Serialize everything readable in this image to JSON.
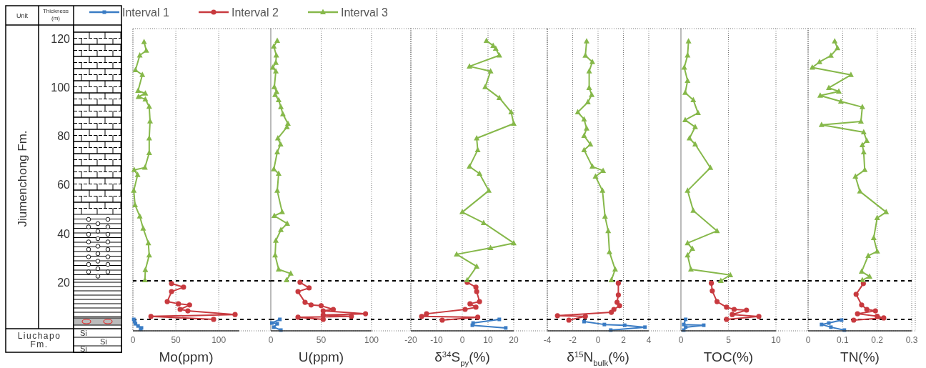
{
  "chart_data": [
    {
      "type": "line",
      "xlabel": "Mo(ppm)",
      "ylabel": "Thickness (m)",
      "xlim": [
        0,
        124
      ],
      "xticks": [
        0,
        50,
        100
      ],
      "ylim": [
        0,
        124
      ],
      "yticks": [
        20,
        40,
        60,
        80,
        100,
        120
      ],
      "grid": "x",
      "legend": "top",
      "annotations": [
        "Unit",
        "Jiumenchong Fm.",
        "Liuchapo Fm.",
        "Si",
        "Si",
        "Si"
      ],
      "ref_lines": [
        {
          "axis": "y",
          "value": 20.5,
          "color": "#000000",
          "line_style": "dashed"
        },
        {
          "axis": "y",
          "value": 4.7,
          "color": "#000000",
          "line_style": "dashed"
        }
      ],
      "series": [
        {
          "name": "Interval 1",
          "color": "#3a7cc4",
          "marker": "square",
          "x": [
            1,
            2,
            3,
            6,
            10,
            9
          ],
          "values": [
            4.7,
            3.8,
            2.9,
            2,
            1.2,
            0.6
          ]
        },
        {
          "name": "Interval 2",
          "color": "#c83a3f",
          "marker": "circle",
          "x": [
            45,
            59,
            45,
            40,
            53,
            66,
            55,
            64,
            119,
            21,
            94
          ],
          "values": [
            19.4,
            17.9,
            16.1,
            12,
            11.1,
            10.6,
            8.8,
            8.2,
            6.7,
            5.9,
            4.7
          ]
        },
        {
          "name": "Interval 3",
          "color": "#86b84a",
          "marker": "triangle",
          "x": [
            13,
            15.6,
            8,
            3,
            11,
            6,
            14.5,
            6.5,
            14.5,
            19,
            20,
            19,
            19,
            14,
            1.5,
            5.5,
            1,
            2.5,
            8,
            12,
            18,
            19,
            14.5,
            14
          ],
          "values": [
            118.5,
            115,
            113,
            107,
            105,
            98.5,
            97.4,
            96,
            95,
            92,
            86,
            79,
            73,
            67,
            66,
            64,
            57.5,
            51.6,
            47,
            42,
            36,
            31,
            25,
            20.8
          ]
        }
      ]
    },
    {
      "type": "line",
      "xlabel": "U(ppm)",
      "xlim": [
        0,
        100
      ],
      "xticks": [
        0,
        50,
        100
      ],
      "ylim": [
        0,
        124
      ],
      "tick_labels": "x",
      "grid": "x",
      "ref_lines": [
        {
          "axis": "y",
          "value": 20.5,
          "color": "#000000",
          "line_style": "dashed"
        },
        {
          "axis": "y",
          "value": 4.7,
          "color": "#000000",
          "line_style": "dashed"
        }
      ],
      "series": [
        {
          "color": "#3a7cc4",
          "marker": "square",
          "x": [
            9,
            1,
            6.4,
            3,
            10
          ],
          "values": [
            4.7,
            3.2,
            2.9,
            1.5,
            0.3
          ]
        },
        {
          "color": "#c83a3f",
          "marker": "circle",
          "x": [
            29,
            38,
            27,
            34,
            40,
            50,
            62,
            52,
            94,
            52,
            80,
            27,
            52
          ],
          "values": [
            19.9,
            17.6,
            16.1,
            11.7,
            10.6,
            10.3,
            8.8,
            8.2,
            7,
            6.5,
            5.9,
            5.6,
            4.7
          ]
        },
        {
          "color": "#86b84a",
          "marker": "triangle",
          "x": [
            6.4,
            3,
            5.5,
            5,
            2,
            5,
            3.5,
            5.8,
            4.3,
            7.8,
            10,
            12,
            17,
            16,
            7,
            9.7,
            6.4,
            3,
            7.8,
            6.4,
            11.3,
            3.5,
            16.3,
            10,
            5,
            4.3,
            7.8,
            19.8,
            15.6
          ],
          "values": [
            119,
            116.7,
            113,
            110,
            108,
            106.5,
            100,
            98,
            96.8,
            94.7,
            91.8,
            88.9,
            85,
            83.6,
            79,
            76.5,
            73.3,
            66.3,
            64.5,
            57.5,
            48.7,
            47.2,
            44,
            41.4,
            37,
            31,
            25.2,
            23.5,
            20.8
          ]
        }
      ]
    },
    {
      "type": "line",
      "xlabel": "δ$^{34}$S$_{py}$(%)",
      "xlim": [
        -20,
        20
      ],
      "xticks": [
        -20,
        -10,
        0,
        10,
        20
      ],
      "ylim": [
        0,
        124
      ],
      "tick_labels": "x",
      "grid": "x",
      "ref_lines": [
        {
          "axis": "y",
          "value": 20.5,
          "color": "#000000",
          "line_style": "dashed"
        },
        {
          "axis": "y",
          "value": 4.7,
          "color": "#000000",
          "line_style": "dashed"
        }
      ],
      "series": [
        {
          "color": "#3a7cc4",
          "marker": "square",
          "x": [
            14.4,
            4.2,
            3.9,
            16.9
          ],
          "values": [
            4.7,
            3.2,
            2.3,
            1.2
          ]
        },
        {
          "color": "#c83a3f",
          "marker": "circle",
          "x": [
            1.9,
            5.3,
            5.6,
            6.7,
            3,
            5.3,
            1.1,
            -13.9,
            -15.8,
            6,
            -7.8
          ],
          "values": [
            19.9,
            17.9,
            16.1,
            12,
            11.1,
            9.7,
            8.8,
            7,
            5.9,
            5.6,
            4.4
          ]
        },
        {
          "color": "#86b84a",
          "marker": "triangle",
          "x": [
            9.4,
            12,
            13,
            14.4,
            2.8,
            11,
            8.9,
            14.4,
            19,
            20,
            5.6,
            6,
            2.8,
            6.7,
            10.3,
            0,
            8.3,
            20,
            11,
            -2.2,
            5.6,
            1.9
          ],
          "values": [
            119,
            117,
            115.8,
            113,
            108.5,
            106.5,
            100,
            95.6,
            89.7,
            85,
            79,
            74.2,
            67.4,
            64.5,
            57.5,
            48.7,
            44.3,
            36,
            34,
            31.4,
            26.4,
            20.8
          ]
        }
      ]
    },
    {
      "type": "line",
      "xlabel": "δ$^{15}$N$_{bulk}$(%)",
      "xlim": [
        -4,
        4
      ],
      "xticks": [
        -4,
        -2,
        0,
        2,
        4
      ],
      "ylim": [
        0,
        124
      ],
      "tick_labels": "x",
      "grid": "x",
      "ref_lines": [
        {
          "axis": "y",
          "value": 20.5,
          "color": "#000000",
          "line_style": "dashed"
        },
        {
          "axis": "y",
          "value": 4.7,
          "color": "#000000",
          "line_style": "dashed"
        }
      ],
      "series": [
        {
          "color": "#3a7cc4",
          "marker": "square",
          "x": [
            -1.1,
            0.5,
            2.1,
            3.7,
            1
          ],
          "values": [
            3.8,
            2.6,
            2.3,
            1.5,
            0.3
          ]
        },
        {
          "color": "#c83a3f",
          "marker": "circle",
          "x": [
            1.6,
            1.6,
            1.5,
            1.7,
            1.25,
            1.05,
            -3.2,
            -1,
            -2.3
          ],
          "values": [
            19.6,
            14.7,
            11.7,
            10.3,
            8.8,
            7.6,
            6.2,
            5.9,
            4.4
          ]
        },
        {
          "color": "#86b84a",
          "marker": "triangle",
          "x": [
            -0.9,
            -1,
            -0.45,
            -0.7,
            -0.7,
            -0.5,
            -0.8,
            -1.6,
            -1.1,
            -0.9,
            -1.1,
            -0.6,
            -1.1,
            -0.45,
            0.4,
            -0.2,
            0.35,
            0.55,
            0.8,
            0.9,
            1.35,
            1.05
          ],
          "values": [
            118.8,
            112.9,
            110.3,
            106.5,
            99.7,
            96.8,
            93.8,
            89.7,
            86.8,
            83,
            80,
            76.5,
            74.2,
            67.4,
            65.7,
            63.3,
            57.5,
            46.9,
            41,
            32.3,
            25.2,
            20.8
          ]
        }
      ]
    },
    {
      "type": "line",
      "xlabel": "TOC(%)",
      "xlim": [
        0,
        10
      ],
      "xticks": [
        0,
        5,
        10
      ],
      "ylim": [
        0,
        124
      ],
      "tick_labels": "x",
      "grid": "x",
      "ref_lines": [
        {
          "axis": "y",
          "value": 20.5,
          "color": "#000000",
          "line_style": "dashed"
        },
        {
          "axis": "y",
          "value": 4.7,
          "color": "#000000",
          "line_style": "dashed"
        }
      ],
      "series": [
        {
          "color": "#3a7cc4",
          "marker": "square",
          "x": [
            0.5,
            0.3,
            2.4,
            0.5,
            0.3
          ],
          "values": [
            4.7,
            2.6,
            2.3,
            1.5,
            0.3
          ]
        },
        {
          "color": "#c83a3f",
          "marker": "circle",
          "x": [
            3.2,
            3.3,
            3.8,
            4.8,
            5.6,
            6.9,
            5.4,
            8.2,
            4.8
          ],
          "values": [
            19.6,
            16.4,
            12,
            9.7,
            8.8,
            8.5,
            6.7,
            5.9,
            4.7
          ]
        },
        {
          "color": "#86b84a",
          "marker": "triangle",
          "x": [
            0.8,
            0.7,
            0.35,
            0.7,
            0.45,
            1.3,
            1.8,
            0.45,
            1.5,
            0.9,
            1.5,
            3.1,
            0.7,
            1.3,
            3.8,
            0.7,
            1.2,
            0.7,
            1.05,
            5.2,
            4.2
          ],
          "values": [
            118.8,
            113,
            108,
            102.6,
            97.7,
            94.7,
            89.4,
            86.5,
            83.6,
            79,
            76.5,
            66.9,
            57.5,
            49.3,
            41,
            36,
            33.7,
            31,
            25.2,
            22.9,
            20.5
          ]
        }
      ]
    },
    {
      "type": "line",
      "xlabel": "TN(%)",
      "xlim": [
        0,
        0.3
      ],
      "xticks": [
        0,
        0.1,
        0.2,
        0.3
      ],
      "ylim": [
        0,
        124
      ],
      "tick_labels": "x",
      "grid": "x",
      "ref_lines": [
        {
          "axis": "y",
          "value": 20.5,
          "color": "#000000",
          "line_style": "dashed"
        },
        {
          "axis": "y",
          "value": 4.7,
          "color": "#000000",
          "line_style": "dashed"
        }
      ],
      "series": [
        {
          "color": "#3a7cc4",
          "marker": "square",
          "x": [
            0.097,
            0.06,
            0.039,
            0.066,
            0.105
          ],
          "values": [
            4.4,
            3.2,
            2.6,
            1.5,
            0.3
          ]
        },
        {
          "color": "#c83a3f",
          "marker": "circle",
          "x": [
            0.16,
            0.139,
            0.155,
            0.17,
            0.195,
            0.143,
            0.2,
            0.219,
            0.132
          ],
          "values": [
            19.4,
            15,
            10.6,
            8.8,
            8.2,
            7,
            6,
            5.3,
            4.4
          ]
        },
        {
          "color": "#86b84a",
          "marker": "triangle",
          "x": [
            0.077,
            0.085,
            0.066,
            0.033,
            0.012,
            0.124,
            0.06,
            0.089,
            0.035,
            0.095,
            0.157,
            0.153,
            0.039,
            0.161,
            0.17,
            0.157,
            0.161,
            0.164,
            0.137,
            0.15,
            0.226,
            0.2,
            0.19,
            0.2,
            0.174,
            0.155,
            0.178,
            0.157
          ],
          "values": [
            118.8,
            116,
            112.9,
            110.3,
            108,
            105,
            99.7,
            98.2,
            96.5,
            94.1,
            91.8,
            85.9,
            84.5,
            81.5,
            78,
            76.2,
            73.3,
            66,
            63.3,
            57.2,
            48.7,
            46.3,
            38.1,
            32.6,
            30.8,
            24.3,
            22.3,
            20.8
          ]
        }
      ]
    }
  ]
}
